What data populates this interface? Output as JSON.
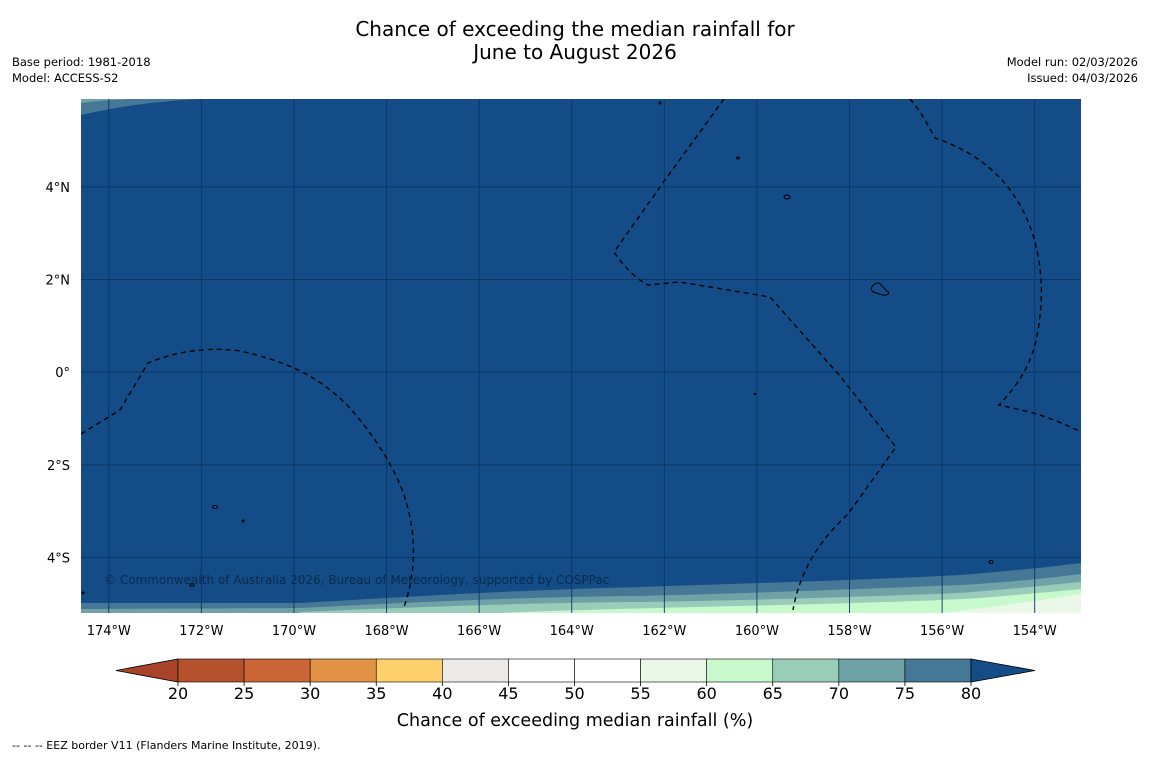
{
  "title": {
    "line1": "Chance of exceeding the median rainfall for",
    "line2": "June to August 2026"
  },
  "meta_left": {
    "base_period": "Base period: 1981-2018",
    "model": "Model: ACCESS-S2"
  },
  "meta_right": {
    "model_run": "Model run: 02/03/2026",
    "issued": "Issued: 04/03/2026"
  },
  "map": {
    "lon_range": [
      -174.6,
      -153.0
    ],
    "lat_range": [
      -5.2,
      5.9
    ],
    "x_ticks": [
      "174°W",
      "172°W",
      "170°W",
      "168°W",
      "166°W",
      "164°W",
      "162°W",
      "160°W",
      "158°W",
      "156°W",
      "154°W"
    ],
    "x_tick_values": [
      -174,
      -172,
      -170,
      -168,
      -166,
      -164,
      -162,
      -160,
      -158,
      -156,
      -154
    ],
    "y_ticks": [
      "4°N",
      "2°N",
      "0°",
      "2°S",
      "4°S"
    ],
    "y_tick_values": [
      4,
      2,
      0,
      -2,
      -4
    ],
    "gridlines": true,
    "credit": "© Commonwealth of Australia 2026, Bureau of Meteorology, supported by COSPPac"
  },
  "colorbar": {
    "tick_labels": [
      "20",
      "25",
      "30",
      "35",
      "40",
      "45",
      "50",
      "55",
      "60",
      "65",
      "70",
      "75",
      "80"
    ],
    "colors": [
      "#a9442a",
      "#b5512c",
      "#cc6637",
      "#e39345",
      "#fdd06c",
      "#ede9e6",
      "#ffffff",
      "#ffffff",
      "#ebf7e8",
      "#c8f9cc",
      "#9acdb9",
      "#6fa2a6",
      "#447896",
      "#134c86"
    ],
    "label": "Chance of exceeding median rainfall (%)",
    "extend": "both"
  },
  "colors": {
    "ocean_dominant": "#134c86",
    "band_75_80": "#447896",
    "band_70_75": "#6fa2a6",
    "band_65_70": "#9acdb9",
    "band_60_65": "#c8f9cc",
    "band_55_60": "#ebf7e8"
  },
  "footnote": "--  --  -- EEZ border V11 (Flanders Marine Institute, 2019)."
}
